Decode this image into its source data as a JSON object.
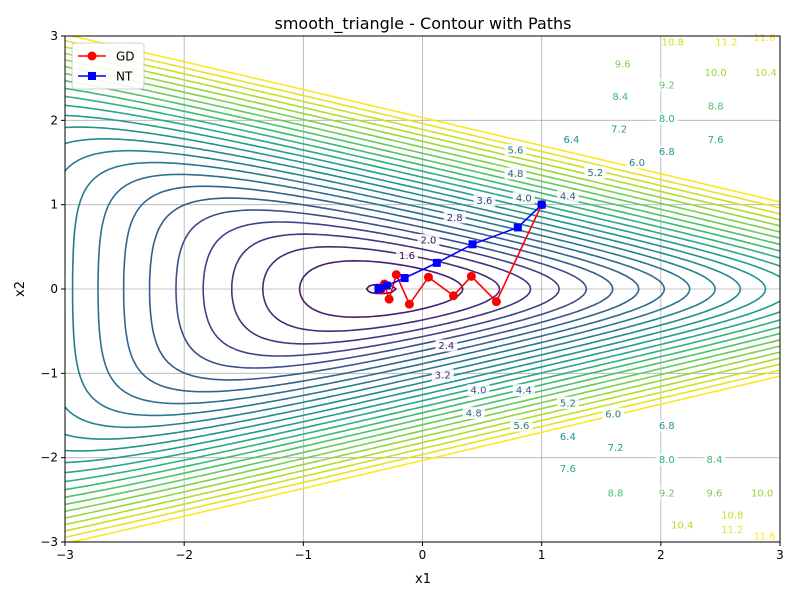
{
  "chart_data": {
    "type": "contour",
    "title": "smooth_triangle - Contour with Paths",
    "xlabel": "x1",
    "ylabel": "x2",
    "xlim": [
      -3,
      3
    ],
    "ylim": [
      -3,
      3
    ],
    "xticks": [
      "−3",
      "−2",
      "−1",
      "0",
      "1",
      "2",
      "3"
    ],
    "yticks": [
      "−3",
      "−2",
      "−1",
      "0",
      "1",
      "2",
      "3"
    ],
    "grid": true,
    "legend_position": "top-left",
    "contour_levels": [
      1.6,
      2.0,
      2.4,
      2.8,
      3.2,
      3.6,
      4.0,
      4.4,
      4.8,
      5.2,
      5.6,
      6.0,
      6.4,
      6.8,
      7.2,
      7.6,
      8.0,
      8.4,
      8.8,
      9.2,
      9.6,
      10.0,
      10.4,
      10.8,
      11.2,
      11.6
    ],
    "contour_labels": [
      {
        "text": "1.6",
        "x": -0.13,
        "y": 0.4
      },
      {
        "text": "2.0",
        "x": 0.05,
        "y": 0.58
      },
      {
        "text": "2.8",
        "x": 0.27,
        "y": 0.85
      },
      {
        "text": "3.6",
        "x": 0.52,
        "y": 1.05
      },
      {
        "text": "4.0",
        "x": 0.85,
        "y": 1.08
      },
      {
        "text": "4.4",
        "x": 1.22,
        "y": 1.1
      },
      {
        "text": "4.8",
        "x": 0.78,
        "y": 1.37
      },
      {
        "text": "5.2",
        "x": 1.45,
        "y": 1.38
      },
      {
        "text": "5.6",
        "x": 0.78,
        "y": 1.65
      },
      {
        "text": "6.0",
        "x": 1.8,
        "y": 1.5
      },
      {
        "text": "6.4",
        "x": 1.25,
        "y": 1.77
      },
      {
        "text": "6.8",
        "x": 2.05,
        "y": 1.63
      },
      {
        "text": "7.2",
        "x": 1.65,
        "y": 1.9
      },
      {
        "text": "7.6",
        "x": 2.46,
        "y": 1.77
      },
      {
        "text": "8.0",
        "x": 2.05,
        "y": 2.02
      },
      {
        "text": "8.4",
        "x": 1.66,
        "y": 2.28
      },
      {
        "text": "8.8",
        "x": 2.46,
        "y": 2.17
      },
      {
        "text": "9.2",
        "x": 2.05,
        "y": 2.42
      },
      {
        "text": "9.6",
        "x": 1.68,
        "y": 2.67
      },
      {
        "text": "10.0",
        "x": 2.46,
        "y": 2.57
      },
      {
        "text": "10.4",
        "x": 2.88,
        "y": 2.57
      },
      {
        "text": "10.8",
        "x": 2.1,
        "y": 2.93
      },
      {
        "text": "11.2",
        "x": 2.55,
        "y": 2.93
      },
      {
        "text": "11.6",
        "x": 2.87,
        "y": 2.98
      },
      {
        "text": "2.4",
        "x": 0.2,
        "y": -0.67
      },
      {
        "text": "3.2",
        "x": 0.17,
        "y": -1.02
      },
      {
        "text": "4.0",
        "x": 0.47,
        "y": -1.2
      },
      {
        "text": "4.4",
        "x": 0.85,
        "y": -1.2
      },
      {
        "text": "4.8",
        "x": 0.43,
        "y": -1.47
      },
      {
        "text": "5.2",
        "x": 1.22,
        "y": -1.35
      },
      {
        "text": "5.6",
        "x": 0.83,
        "y": -1.62
      },
      {
        "text": "6.0",
        "x": 1.6,
        "y": -1.48
      },
      {
        "text": "6.4",
        "x": 1.22,
        "y": -1.75
      },
      {
        "text": "6.8",
        "x": 2.05,
        "y": -1.62
      },
      {
        "text": "7.2",
        "x": 1.62,
        "y": -1.88
      },
      {
        "text": "7.6",
        "x": 1.22,
        "y": -2.13
      },
      {
        "text": "8.0",
        "x": 2.05,
        "y": -2.02
      },
      {
        "text": "8.4",
        "x": 2.45,
        "y": -2.02
      },
      {
        "text": "8.8",
        "x": 1.62,
        "y": -2.42
      },
      {
        "text": "9.2",
        "x": 2.05,
        "y": -2.42
      },
      {
        "text": "9.6",
        "x": 2.45,
        "y": -2.42
      },
      {
        "text": "10.0",
        "x": 2.85,
        "y": -2.42
      },
      {
        "text": "10.4",
        "x": 2.18,
        "y": -2.8
      },
      {
        "text": "10.8",
        "x": 2.6,
        "y": -2.68
      },
      {
        "text": "11.2",
        "x": 2.6,
        "y": -2.85
      },
      {
        "text": "11.6",
        "x": 2.87,
        "y": -2.93
      }
    ],
    "series": [
      {
        "name": "GD",
        "color": "#ff0000",
        "marker": "circle",
        "x": [
          1.0,
          0.62,
          0.41,
          0.26,
          0.05,
          -0.11,
          -0.22,
          -0.28,
          -0.32,
          -0.35,
          -0.36
        ],
        "y": [
          1.0,
          -0.15,
          0.15,
          -0.08,
          0.14,
          -0.18,
          0.17,
          -0.12,
          0.06,
          -0.01,
          0.01
        ]
      },
      {
        "name": "NT",
        "color": "#0000ff",
        "marker": "square",
        "x": [
          1.0,
          0.8,
          0.42,
          0.12,
          -0.15,
          -0.3,
          -0.36,
          -0.37
        ],
        "y": [
          1.0,
          0.73,
          0.53,
          0.31,
          0.13,
          0.04,
          0.01,
          0.0
        ]
      }
    ]
  }
}
